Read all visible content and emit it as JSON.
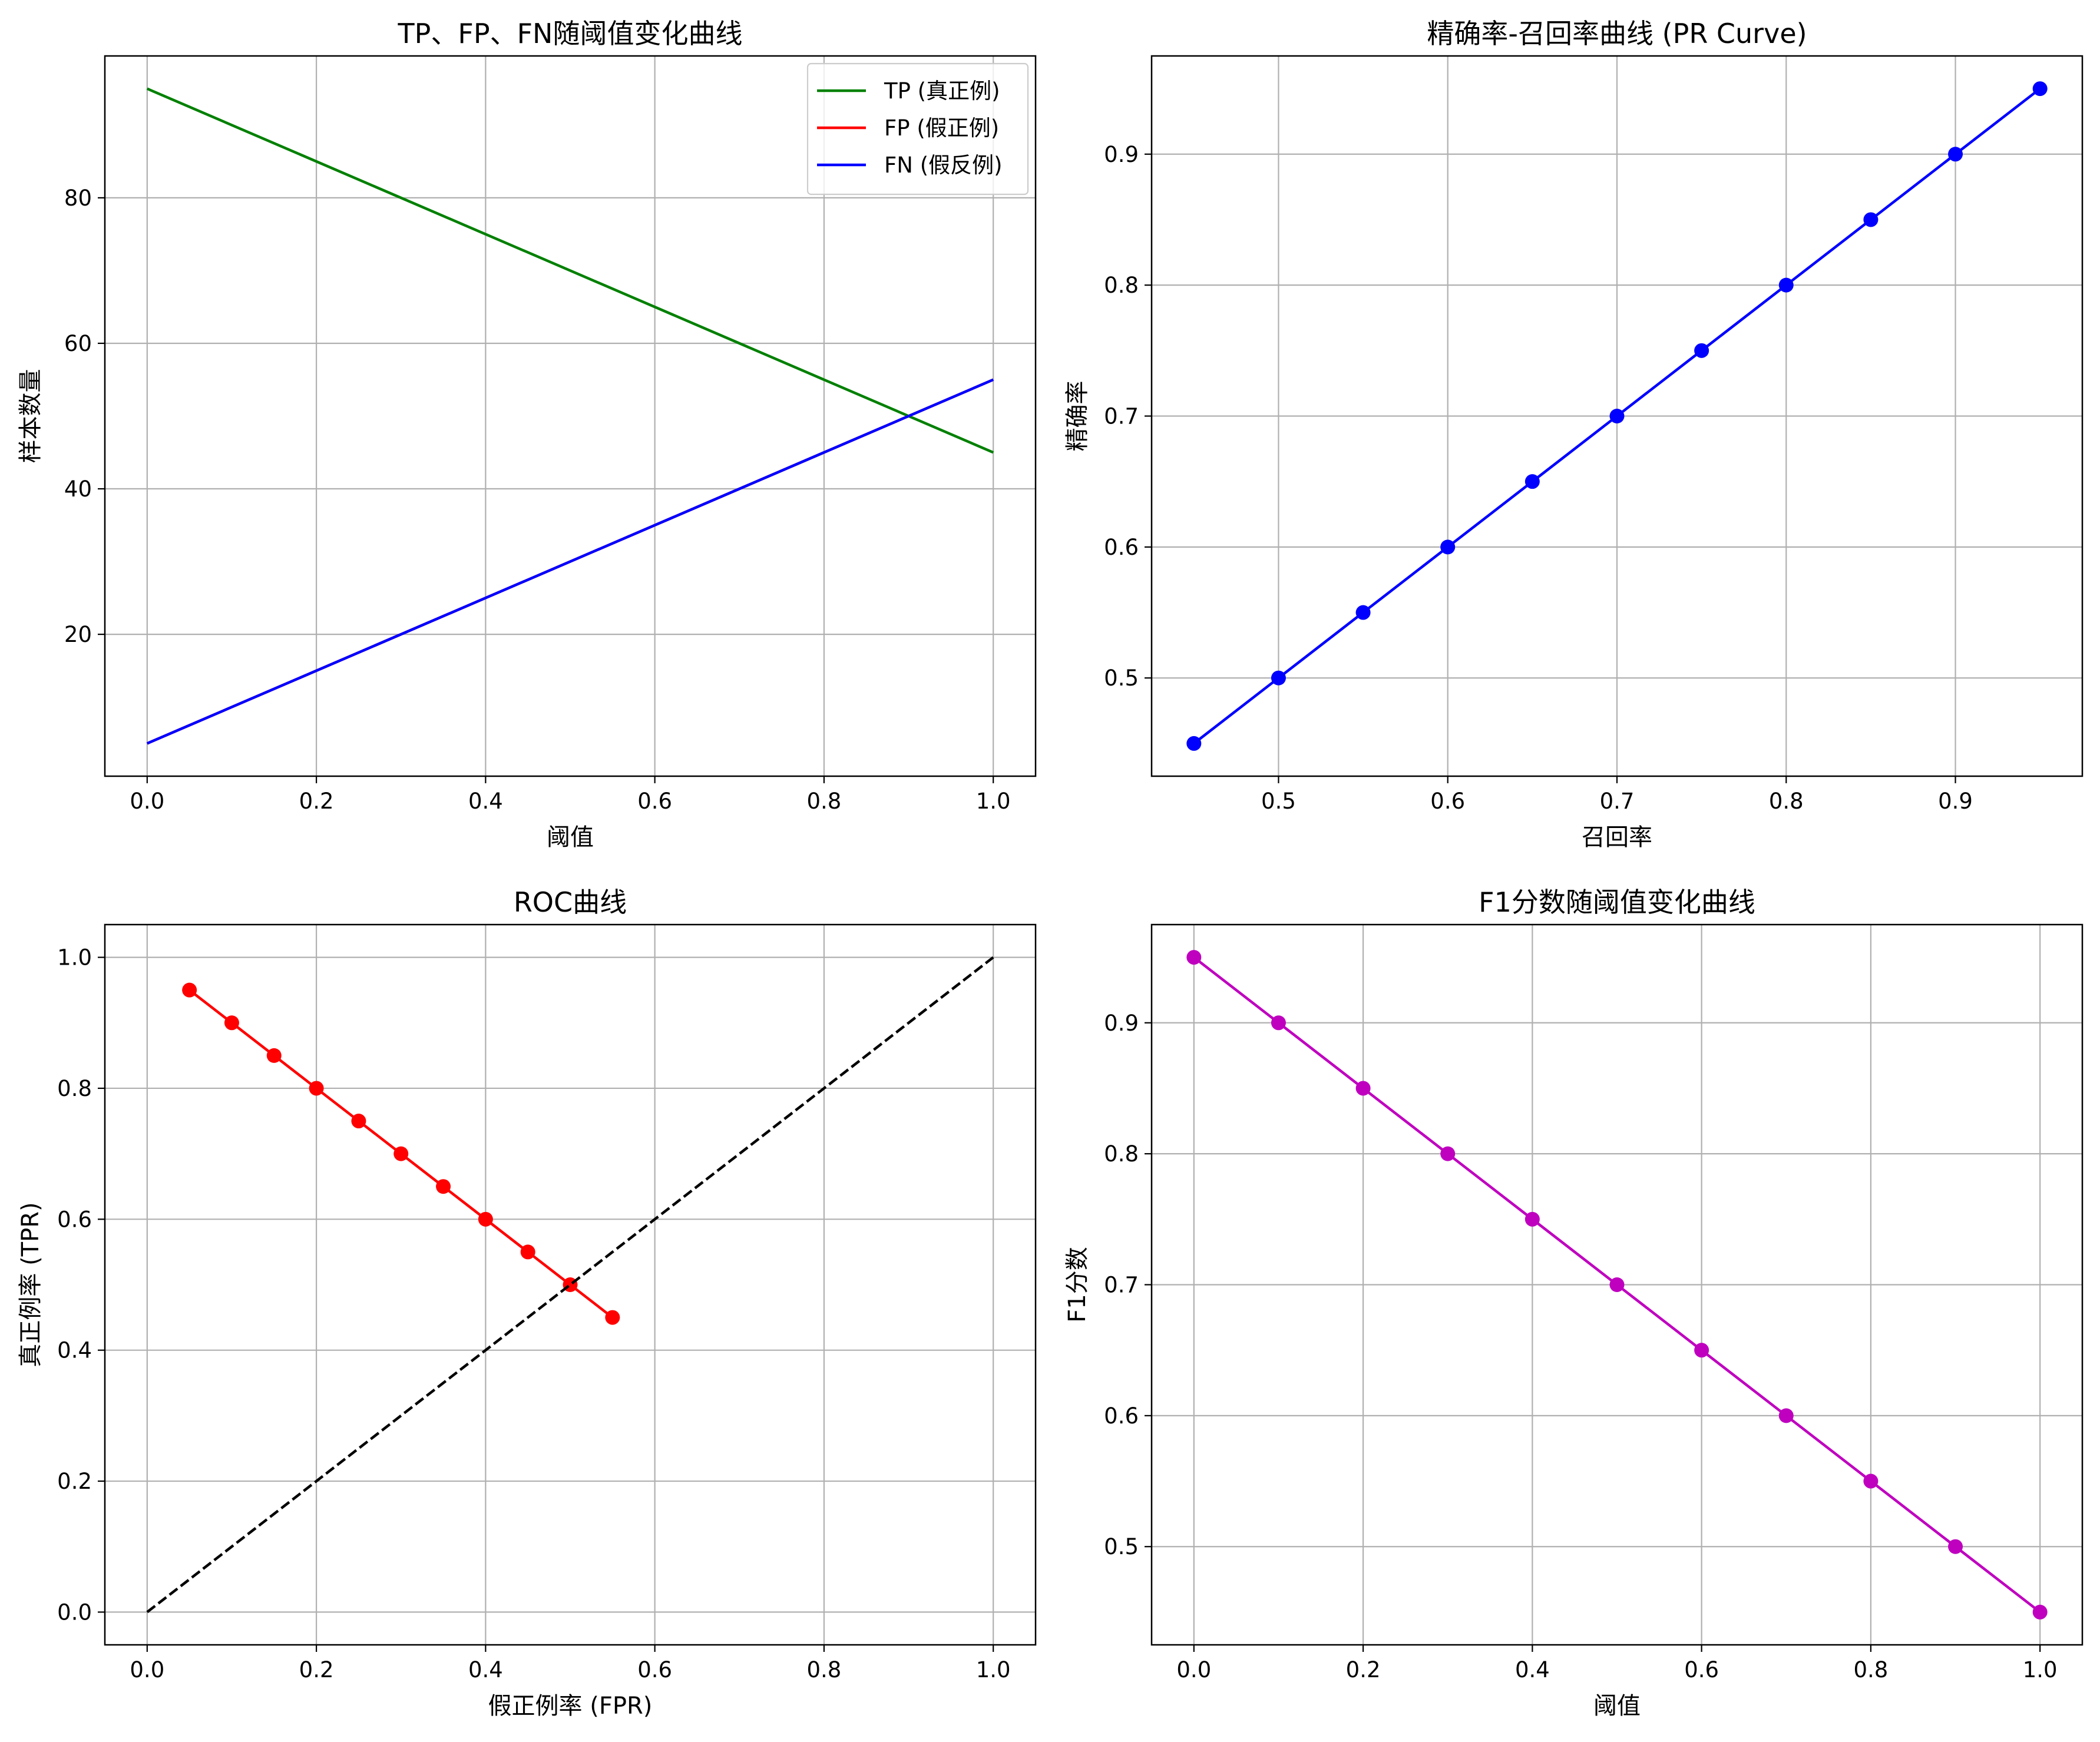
{
  "chart_data": [
    {
      "type": "line",
      "title": "TP、FP、FN随阈值变化曲线",
      "xlabel": "阈值",
      "ylabel": "样本数量",
      "xlim": [
        -0.05,
        1.05
      ],
      "ylim": [
        0.5,
        99.5
      ],
      "xticks": [
        0.0,
        0.2,
        0.4,
        0.6,
        0.8,
        1.0
      ],
      "xtick_labels": [
        "0.0",
        "0.2",
        "0.4",
        "0.6",
        "0.8",
        "1.0"
      ],
      "yticks": [
        20,
        40,
        60,
        80
      ],
      "ytick_labels": [
        "20",
        "40",
        "60",
        "80"
      ],
      "grid": true,
      "legend": "top-right",
      "series": [
        {
          "name": "TP (真正例)",
          "color": "#008000",
          "markers": false,
          "dashed": false,
          "x": [
            0.0,
            1.0
          ],
          "y": [
            95,
            45
          ]
        },
        {
          "name": "FP (假正例)",
          "color": "#ff0000",
          "markers": false,
          "dashed": false,
          "x": [
            0.0,
            1.0
          ],
          "y": [
            5,
            55
          ]
        },
        {
          "name": "FN (假反例)",
          "color": "#0000ff",
          "markers": false,
          "dashed": false,
          "x": [
            0.0,
            1.0
          ],
          "y": [
            5,
            55
          ]
        }
      ]
    },
    {
      "type": "line",
      "title": "精确率-召回率曲线 (PR Curve)",
      "xlabel": "召回率",
      "ylabel": "精确率",
      "xlim": [
        0.425,
        0.975
      ],
      "ylim": [
        0.425,
        0.975
      ],
      "xticks": [
        0.5,
        0.6,
        0.7,
        0.8,
        0.9
      ],
      "xtick_labels": [
        "0.5",
        "0.6",
        "0.7",
        "0.8",
        "0.9"
      ],
      "yticks": [
        0.5,
        0.6,
        0.7,
        0.8,
        0.9
      ],
      "ytick_labels": [
        "0.5",
        "0.6",
        "0.7",
        "0.8",
        "0.9"
      ],
      "grid": true,
      "series": [
        {
          "color": "#0000ff",
          "markers": true,
          "dashed": false,
          "x": [
            0.45,
            0.5,
            0.55,
            0.6,
            0.65,
            0.7,
            0.75,
            0.8,
            0.85,
            0.9,
            0.95
          ],
          "y": [
            0.45,
            0.5,
            0.55,
            0.6,
            0.65,
            0.7,
            0.75,
            0.8,
            0.85,
            0.9,
            0.95
          ]
        }
      ]
    },
    {
      "type": "line",
      "title": "ROC曲线",
      "xlabel": "假正例率 (FPR)",
      "ylabel": "真正例率 (TPR)",
      "xlim": [
        -0.05,
        1.05
      ],
      "ylim": [
        -0.05,
        1.05
      ],
      "xticks": [
        0.0,
        0.2,
        0.4,
        0.6,
        0.8,
        1.0
      ],
      "xtick_labels": [
        "0.0",
        "0.2",
        "0.4",
        "0.6",
        "0.8",
        "1.0"
      ],
      "yticks": [
        0.0,
        0.2,
        0.4,
        0.6,
        0.8,
        1.0
      ],
      "ytick_labels": [
        "0.0",
        "0.2",
        "0.4",
        "0.6",
        "0.8",
        "1.0"
      ],
      "grid": true,
      "series": [
        {
          "color": "#ff0000",
          "markers": true,
          "dashed": false,
          "x": [
            0.05,
            0.1,
            0.15,
            0.2,
            0.25,
            0.3,
            0.35,
            0.4,
            0.45,
            0.5,
            0.55
          ],
          "y": [
            0.95,
            0.9,
            0.85,
            0.8,
            0.75,
            0.7,
            0.65,
            0.6,
            0.55,
            0.5,
            0.45
          ]
        },
        {
          "color": "#000000",
          "markers": false,
          "dashed": true,
          "x": [
            0.0,
            1.0
          ],
          "y": [
            0.0,
            1.0
          ]
        }
      ]
    },
    {
      "type": "line",
      "title": "F1分数随阈值变化曲线",
      "xlabel": "阈值",
      "ylabel": "F1分数",
      "xlim": [
        -0.05,
        1.05
      ],
      "ylim": [
        0.425,
        0.975
      ],
      "xticks": [
        0.0,
        0.2,
        0.4,
        0.6,
        0.8,
        1.0
      ],
      "xtick_labels": [
        "0.0",
        "0.2",
        "0.4",
        "0.6",
        "0.8",
        "1.0"
      ],
      "yticks": [
        0.5,
        0.6,
        0.7,
        0.8,
        0.9
      ],
      "ytick_labels": [
        "0.5",
        "0.6",
        "0.7",
        "0.8",
        "0.9"
      ],
      "grid": true,
      "series": [
        {
          "color": "#bf00bf",
          "markers": true,
          "dashed": false,
          "x": [
            0.0,
            0.1,
            0.2,
            0.3,
            0.4,
            0.5,
            0.6,
            0.7,
            0.8,
            0.9,
            1.0
          ],
          "y": [
            0.95,
            0.9,
            0.85,
            0.8,
            0.75,
            0.7,
            0.65,
            0.6,
            0.55,
            0.5,
            0.45
          ]
        }
      ]
    }
  ]
}
